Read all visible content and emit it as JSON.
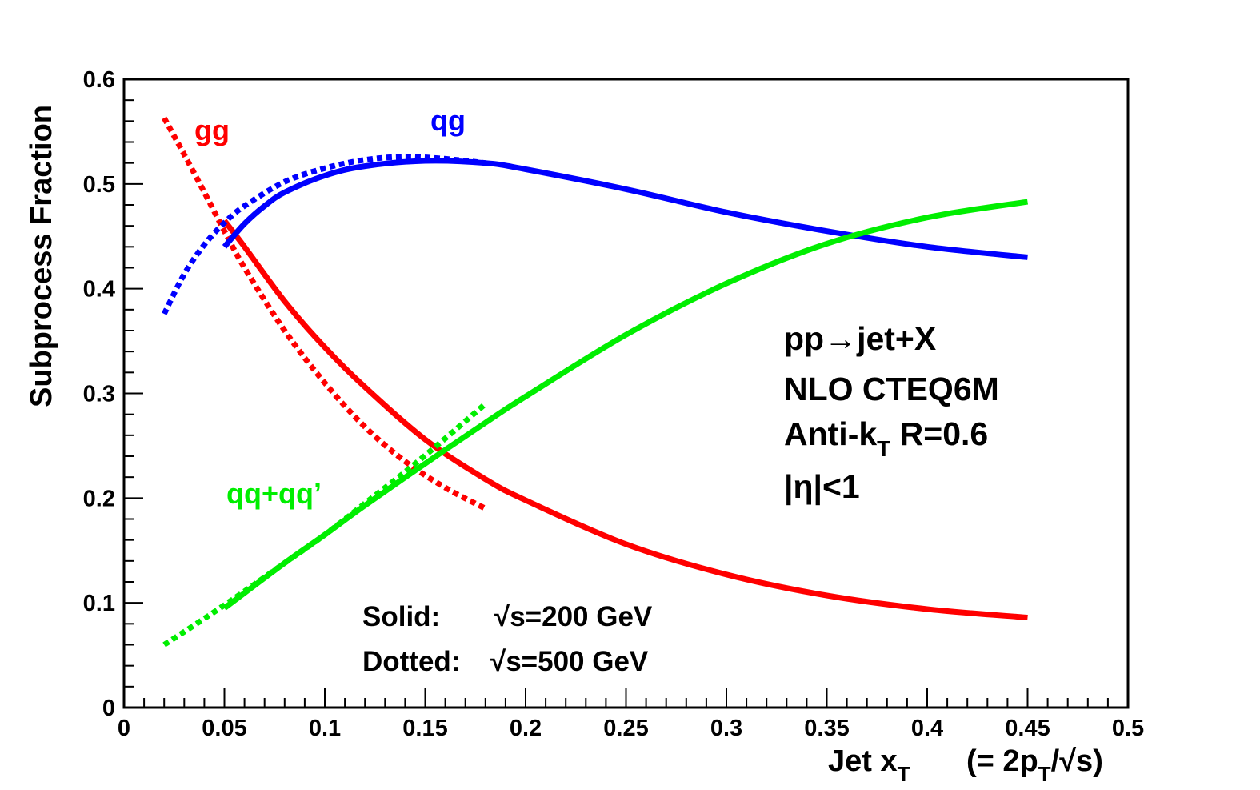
{
  "chart_data": {
    "type": "line",
    "title": "",
    "xlabel": "Jet x",
    "xlabel_sub": "T",
    "xlabel_note": "(= 2p",
    "xlabel_note_sub": "T",
    "xlabel_note_end": "/√s)",
    "ylabel": "Subprocess Fraction",
    "xlim": [
      0,
      0.5
    ],
    "ylim": [
      0,
      0.6
    ],
    "x_ticks": [
      "0",
      "0.05",
      "0.1",
      "0.15",
      "0.2",
      "0.25",
      "0.3",
      "0.35",
      "0.4",
      "0.45",
      "0.5"
    ],
    "y_ticks": [
      "0",
      "0.1",
      "0.2",
      "0.3",
      "0.4",
      "0.5",
      "0.6"
    ],
    "grid": false,
    "series": [
      {
        "name": "gg",
        "group": "gg",
        "color": "#ff0000",
        "style": "solid",
        "x": [
          0.05,
          0.06,
          0.08,
          0.1,
          0.12,
          0.15,
          0.18,
          0.2,
          0.25,
          0.3,
          0.35,
          0.4,
          0.45
        ],
        "y": [
          0.465,
          0.44,
          0.388,
          0.344,
          0.306,
          0.256,
          0.218,
          0.198,
          0.156,
          0.127,
          0.107,
          0.094,
          0.086
        ]
      },
      {
        "name": "gg",
        "group": "gg",
        "color": "#ff0000",
        "style": "dotted",
        "x": [
          0.02,
          0.03,
          0.04,
          0.05,
          0.06,
          0.08,
          0.1,
          0.12,
          0.14,
          0.16,
          0.18
        ],
        "y": [
          0.563,
          0.528,
          0.492,
          0.455,
          0.42,
          0.36,
          0.31,
          0.268,
          0.235,
          0.21,
          0.19
        ]
      },
      {
        "name": "qg",
        "group": "qg",
        "color": "#0000ff",
        "style": "solid",
        "x": [
          0.05,
          0.06,
          0.07,
          0.08,
          0.1,
          0.12,
          0.15,
          0.18,
          0.2,
          0.25,
          0.3,
          0.35,
          0.4,
          0.45
        ],
        "y": [
          0.44,
          0.462,
          0.479,
          0.492,
          0.508,
          0.517,
          0.522,
          0.52,
          0.514,
          0.495,
          0.473,
          0.455,
          0.44,
          0.43
        ]
      },
      {
        "name": "qg",
        "group": "qg",
        "color": "#0000ff",
        "style": "dotted",
        "x": [
          0.02,
          0.03,
          0.04,
          0.05,
          0.06,
          0.08,
          0.1,
          0.12,
          0.14,
          0.16,
          0.18
        ],
        "y": [
          0.376,
          0.414,
          0.442,
          0.463,
          0.479,
          0.502,
          0.515,
          0.523,
          0.526,
          0.524,
          0.52
        ]
      },
      {
        "name": "qq+qq’",
        "group": "qq",
        "color": "#00ee00",
        "style": "solid",
        "x": [
          0.05,
          0.08,
          0.1,
          0.12,
          0.15,
          0.18,
          0.2,
          0.25,
          0.3,
          0.35,
          0.4,
          0.45
        ],
        "y": [
          0.095,
          0.138,
          0.165,
          0.193,
          0.233,
          0.272,
          0.297,
          0.356,
          0.405,
          0.443,
          0.468,
          0.483
        ]
      },
      {
        "name": "qq+qq’",
        "group": "qq",
        "color": "#00ee00",
        "style": "dotted",
        "x": [
          0.02,
          0.04,
          0.06,
          0.08,
          0.1,
          0.12,
          0.14,
          0.16,
          0.18
        ],
        "y": [
          0.06,
          0.085,
          0.111,
          0.138,
          0.165,
          0.195,
          0.225,
          0.257,
          0.29
        ]
      }
    ],
    "annotations": {
      "process": "pp→jet+X",
      "calc": "NLO CTEQ6M",
      "algo_prefix": "Anti-k",
      "algo_sub": "T",
      "algo_suffix": " R=0.6",
      "eta_cut": "|η|<1",
      "legend_solid_label": "Solid:",
      "legend_solid_value": "√s=200 GeV",
      "legend_dotted_label": "Dotted:",
      "legend_dotted_value": "√s=500 GeV"
    },
    "curve_labels": {
      "gg": "gg",
      "qg": "qg",
      "qq": "qq+qq’"
    }
  }
}
